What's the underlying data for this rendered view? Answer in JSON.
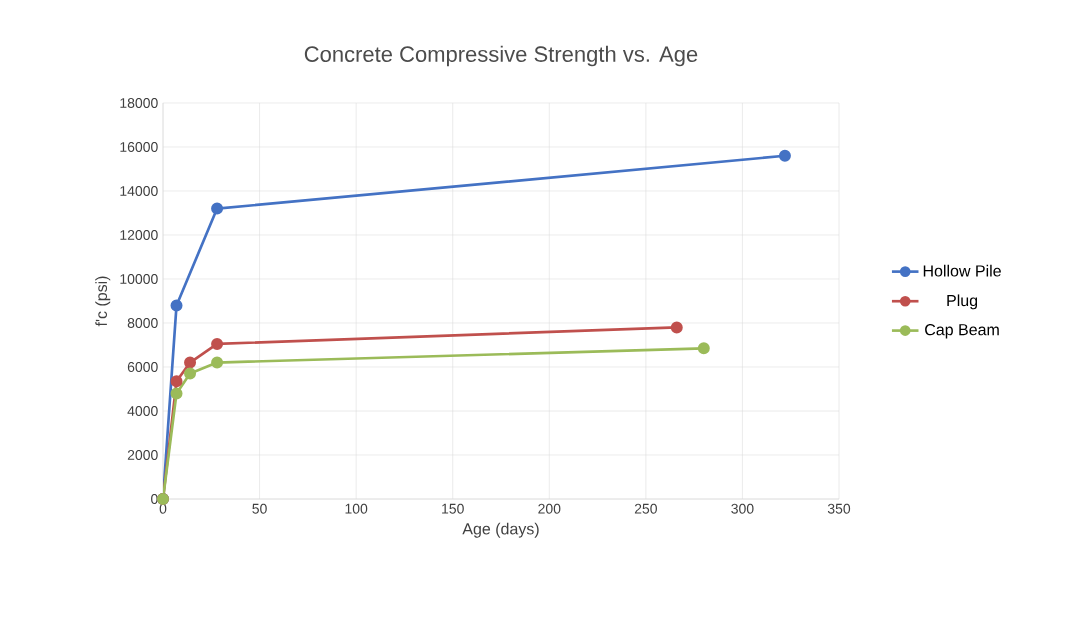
{
  "chart_data": {
    "type": "line",
    "title": "Concrete Compressive Strength vs. Age",
    "xlabel": "Age (days)",
    "ylabel": "f'c (psi)",
    "xlim": [
      0,
      350
    ],
    "xticks": [
      0,
      50,
      100,
      150,
      200,
      250,
      300,
      350
    ],
    "ylim": [
      0,
      18000
    ],
    "yticks": [
      0,
      2000,
      4000,
      6000,
      8000,
      10000,
      12000,
      14000,
      16000,
      18000
    ],
    "grid": true,
    "legend": "right",
    "marker": "circle",
    "line_style": "solid",
    "series": [
      {
        "name": "Hollow Pile",
        "color": "#4472c4",
        "x": [
          0,
          7,
          28,
          322
        ],
        "values": [
          0,
          8800,
          13200,
          15600
        ]
      },
      {
        "name": "Plug",
        "color": "#c0504d",
        "x": [
          0,
          7,
          14,
          28,
          266
        ],
        "values": [
          0,
          5350,
          6200,
          7050,
          7800
        ]
      },
      {
        "name": "Cap Beam",
        "color": "#9bbb59",
        "x": [
          0,
          7,
          14,
          28,
          280
        ],
        "values": [
          0,
          4800,
          5700,
          6200,
          6850
        ]
      }
    ]
  }
}
